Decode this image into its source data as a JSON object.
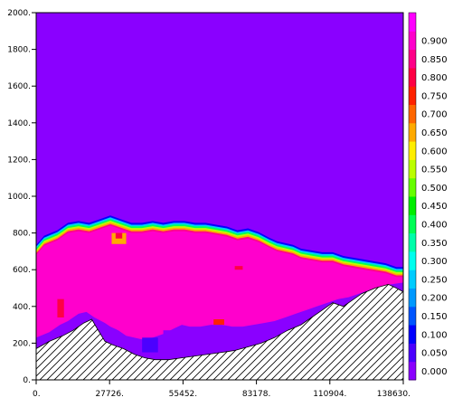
{
  "chart_data": {
    "type": "heatmap",
    "title": "",
    "xlabel": "",
    "ylabel": "",
    "xlim": [
      0,
      138630
    ],
    "ylim": [
      0,
      2000
    ],
    "x_ticks": [
      {
        "value": 0,
        "label": "0."
      },
      {
        "value": 27726,
        "label": "27726."
      },
      {
        "value": 55452,
        "label": "55452."
      },
      {
        "value": 83178,
        "label": "83178."
      },
      {
        "value": 110904,
        "label": "110904."
      },
      {
        "value": 138630,
        "label": "138630."
      }
    ],
    "y_ticks": [
      {
        "value": 0,
        "label": "0."
      },
      {
        "value": 200,
        "label": "200."
      },
      {
        "value": 400,
        "label": "400."
      },
      {
        "value": 600,
        "label": "600."
      },
      {
        "value": 800,
        "label": "800."
      },
      {
        "value": 1000,
        "label": "1000."
      },
      {
        "value": 1200,
        "label": "1200."
      },
      {
        "value": 1400,
        "label": "1400."
      },
      {
        "value": 1600,
        "label": "1600."
      },
      {
        "value": 1800,
        "label": "1800."
      },
      {
        "value": 2000,
        "label": "2000."
      }
    ],
    "colorbar": {
      "levels": [
        {
          "label": "0.000",
          "color": "#8a00ff"
        },
        {
          "label": "0.050",
          "color": "#4b00ff"
        },
        {
          "label": "0.100",
          "color": "#0000ff"
        },
        {
          "label": "0.150",
          "color": "#0055ff"
        },
        {
          "label": "0.200",
          "color": "#0099ff"
        },
        {
          "label": "0.250",
          "color": "#00ccff"
        },
        {
          "label": "0.300",
          "color": "#00ffee"
        },
        {
          "label": "0.350",
          "color": "#00ffaa"
        },
        {
          "label": "0.400",
          "color": "#00ff55"
        },
        {
          "label": "0.450",
          "color": "#00ee00"
        },
        {
          "label": "0.500",
          "color": "#66ff00"
        },
        {
          "label": "0.550",
          "color": "#bbff00"
        },
        {
          "label": "0.600",
          "color": "#ffee00"
        },
        {
          "label": "0.650",
          "color": "#ffaa00"
        },
        {
          "label": "0.700",
          "color": "#ff6600"
        },
        {
          "label": "0.750",
          "color": "#ff2200"
        },
        {
          "label": "0.800",
          "color": "#ff0044"
        },
        {
          "label": "0.850",
          "color": "#ff0088"
        },
        {
          "label": "0.900",
          "color": "#ff00cc"
        },
        {
          "label": "",
          "color": "#ff00ff"
        }
      ]
    },
    "field": {
      "background_value": 0.0,
      "cloud_value": 0.95,
      "cloud_top": [
        [
          0,
          680
        ],
        [
          3000,
          730
        ],
        [
          8000,
          760
        ],
        [
          12000,
          800
        ],
        [
          16000,
          810
        ],
        [
          20000,
          800
        ],
        [
          24000,
          820
        ],
        [
          28000,
          840
        ],
        [
          32000,
          820
        ],
        [
          36000,
          800
        ],
        [
          40000,
          800
        ],
        [
          44000,
          810
        ],
        [
          48000,
          800
        ],
        [
          52000,
          810
        ],
        [
          56000,
          810
        ],
        [
          60000,
          800
        ],
        [
          64000,
          800
        ],
        [
          68000,
          790
        ],
        [
          72000,
          780
        ],
        [
          76000,
          760
        ],
        [
          80000,
          770
        ],
        [
          84000,
          750
        ],
        [
          88000,
          720
        ],
        [
          91000,
          700
        ],
        [
          94000,
          690
        ],
        [
          97000,
          680
        ],
        [
          100000,
          660
        ],
        [
          104000,
          650
        ],
        [
          108000,
          640
        ],
        [
          112000,
          640
        ],
        [
          116000,
          620
        ],
        [
          120000,
          610
        ],
        [
          124000,
          600
        ],
        [
          128000,
          590
        ],
        [
          132000,
          580
        ],
        [
          136000,
          560
        ],
        [
          138630,
          560
        ]
      ],
      "cloud_base": [
        [
          0,
          230
        ],
        [
          5000,
          260
        ],
        [
          9000,
          300
        ],
        [
          12000,
          320
        ],
        [
          16000,
          360
        ],
        [
          19000,
          370
        ],
        [
          22000,
          340
        ],
        [
          26000,
          310
        ],
        [
          28000,
          290
        ],
        [
          31000,
          270
        ],
        [
          34000,
          240
        ],
        [
          37000,
          230
        ],
        [
          40000,
          220
        ],
        [
          44000,
          230
        ],
        [
          48000,
          250
        ],
        [
          52000,
          280
        ],
        [
          55000,
          300
        ],
        [
          58000,
          290
        ],
        [
          62000,
          290
        ],
        [
          66000,
          300
        ],
        [
          70000,
          300
        ],
        [
          74000,
          290
        ],
        [
          78000,
          290
        ],
        [
          82000,
          300
        ],
        [
          86000,
          310
        ],
        [
          90000,
          320
        ],
        [
          94000,
          340
        ],
        [
          98000,
          360
        ],
        [
          102000,
          380
        ],
        [
          106000,
          400
        ],
        [
          110000,
          420
        ],
        [
          114000,
          440
        ],
        [
          118000,
          450
        ],
        [
          122000,
          470
        ],
        [
          126000,
          490
        ],
        [
          130000,
          510
        ],
        [
          134000,
          520
        ],
        [
          138630,
          530
        ]
      ],
      "hot_spots": [
        {
          "x": [
            8000,
            10500
          ],
          "y": [
            340,
            440
          ],
          "value": 0.8
        },
        {
          "x": [
            28500,
            34000
          ],
          "y": [
            740,
            800
          ],
          "value": 0.7
        },
        {
          "x": [
            30000,
            32500
          ],
          "y": [
            770,
            800
          ],
          "value": 0.8
        },
        {
          "x": [
            75000,
            78000
          ],
          "y": [
            600,
            620
          ],
          "value": 0.8
        },
        {
          "x": [
            67000,
            71000
          ],
          "y": [
            300,
            330
          ],
          "value": 0.75
        }
      ],
      "cool_pockets": [
        {
          "x": [
            48000,
            60000
          ],
          "y": [
            150,
            270
          ],
          "value": 0.0
        },
        {
          "x": [
            40000,
            46000
          ],
          "y": [
            150,
            230
          ],
          "value": 0.05
        }
      ]
    },
    "terrain": [
      [
        0,
        170
      ],
      [
        5000,
        210
      ],
      [
        10000,
        240
      ],
      [
        14000,
        270
      ],
      [
        18000,
        310
      ],
      [
        21000,
        330
      ],
      [
        23000,
        280
      ],
      [
        26000,
        210
      ],
      [
        29000,
        190
      ],
      [
        33000,
        170
      ],
      [
        37000,
        140
      ],
      [
        41000,
        120
      ],
      [
        45000,
        110
      ],
      [
        50000,
        110
      ],
      [
        55000,
        120
      ],
      [
        60000,
        130
      ],
      [
        65000,
        140
      ],
      [
        70000,
        150
      ],
      [
        75000,
        160
      ],
      [
        80000,
        180
      ],
      [
        85000,
        200
      ],
      [
        90000,
        230
      ],
      [
        95000,
        270
      ],
      [
        100000,
        300
      ],
      [
        104000,
        340
      ],
      [
        108000,
        380
      ],
      [
        112000,
        420
      ],
      [
        116000,
        400
      ],
      [
        119000,
        430
      ],
      [
        123000,
        470
      ],
      [
        128000,
        500
      ],
      [
        133000,
        520
      ],
      [
        136000,
        500
      ],
      [
        138630,
        480
      ]
    ]
  }
}
